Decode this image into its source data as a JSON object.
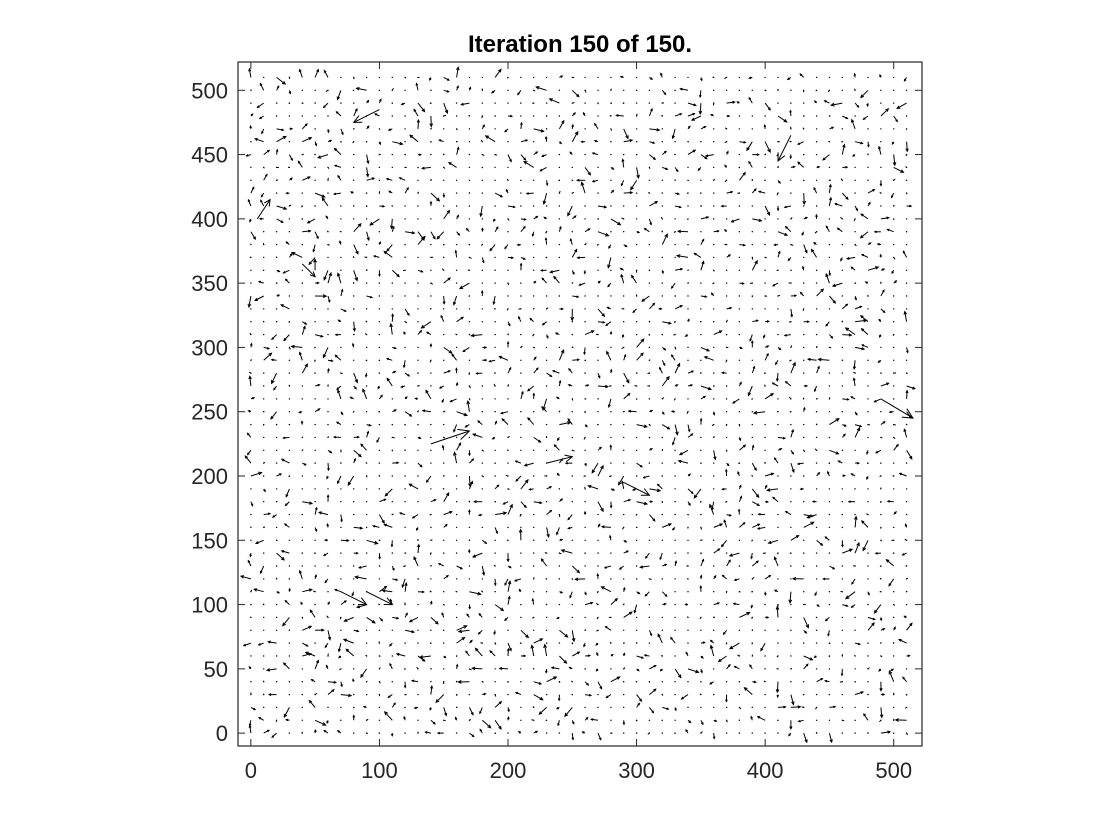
{
  "chart_data": {
    "type": "quiver",
    "title": "Iteration 150 of 150.",
    "xlabel": "",
    "ylabel": "",
    "xlim": [
      -10,
      522
    ],
    "ylim": [
      522,
      -10
    ],
    "y_axis_direction": "reversed",
    "x_ticks": [
      0,
      100,
      200,
      300,
      400,
      500
    ],
    "y_ticks": [
      0,
      50,
      100,
      150,
      200,
      250,
      300,
      350,
      400,
      450,
      500
    ],
    "x_tick_labels": [
      "0",
      "100",
      "200",
      "300",
      "400",
      "500"
    ],
    "y_tick_labels": [
      "0",
      "50",
      "100",
      "150",
      "200",
      "250",
      "300",
      "350",
      "400",
      "450",
      "500"
    ],
    "grid": false,
    "legend": "none",
    "arrow_color": "#000000",
    "grid_spacing": 10,
    "field_extent": [
      0,
      510
    ],
    "field_description_note": "",
    "notable_vectors": [
      {
        "x": 70,
        "y": 110,
        "u": 20,
        "v": 10
      },
      {
        "x": 90,
        "y": 110,
        "u": 20,
        "v": 10
      },
      {
        "x": 140,
        "y": 225,
        "u": 30,
        "v": -10
      },
      {
        "x": 230,
        "y": 210,
        "u": 20,
        "v": -5
      },
      {
        "x": 290,
        "y": 195,
        "u": 20,
        "v": 10
      },
      {
        "x": 490,
        "y": 260,
        "u": 25,
        "v": 15
      },
      {
        "x": 100,
        "y": 485,
        "u": -20,
        "v": 10
      },
      {
        "x": 5,
        "y": 400,
        "u": 10,
        "v": -15
      },
      {
        "x": 40,
        "y": 365,
        "u": 10,
        "v": 10
      },
      {
        "x": 420,
        "y": 465,
        "u": -10,
        "v": 20
      }
    ]
  }
}
